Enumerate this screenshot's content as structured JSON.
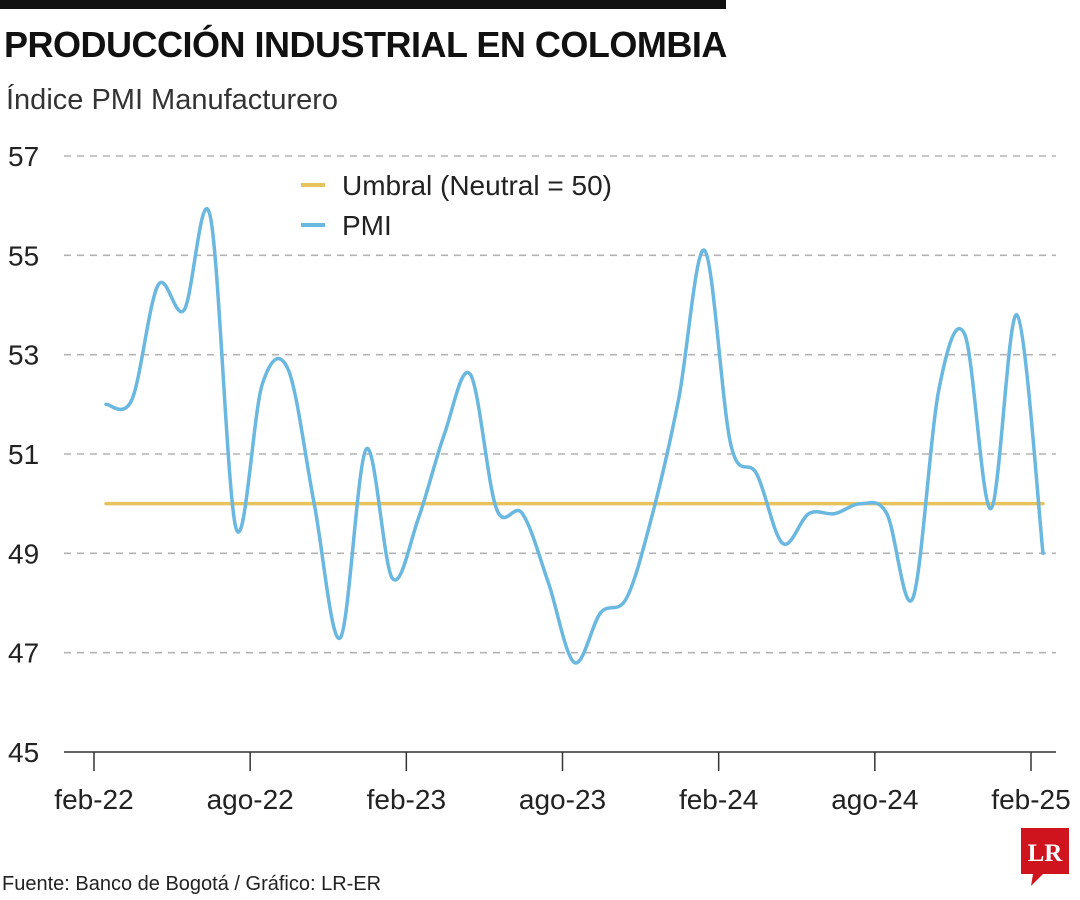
{
  "header": {
    "title": "PRODUCCIÓN INDUSTRIAL EN COLOMBIA",
    "subtitle": "Índice PMI Manufacturero"
  },
  "footer": {
    "source": "Fuente: Banco de Bogotá / Gráfico: LR-ER",
    "logo_text": "LR",
    "logo_icon": "lr-logo-icon"
  },
  "colors": {
    "pmi": "#6ab8e0",
    "threshold": "#e6c35c",
    "grid": "#b3b3b3",
    "logo": "#d0141d"
  },
  "chart_data": {
    "type": "line",
    "x": [
      "feb-22",
      "mar-22",
      "abr-22",
      "may-22",
      "jun-22",
      "jul-22",
      "ago-22",
      "sep-22",
      "oct-22",
      "nov-22",
      "dic-22",
      "ene-23",
      "feb-23",
      "mar-23",
      "abr-23",
      "may-23",
      "jun-23",
      "jul-23",
      "ago-23",
      "sep-23",
      "oct-23",
      "nov-23",
      "dic-23",
      "ene-24",
      "feb-24",
      "mar-24",
      "abr-24",
      "may-24",
      "jun-24",
      "jul-24",
      "ago-24",
      "sep-24",
      "oct-24",
      "nov-24",
      "dic-24",
      "ene-25",
      "feb-25"
    ],
    "x_tick_labels": [
      "feb-22",
      "ago-22",
      "feb-23",
      "ago-23",
      "feb-24",
      "ago-24",
      "feb-25"
    ],
    "y_ticks": [
      45,
      47,
      49,
      51,
      53,
      55,
      57
    ],
    "ylim": [
      45,
      57
    ],
    "grid": "horizontal dashed",
    "legend_position": "top-center",
    "series": [
      {
        "name": "Umbral (Neutral = 50)",
        "color": "#e6c35c",
        "values": [
          50,
          50,
          50,
          50,
          50,
          50,
          50,
          50,
          50,
          50,
          50,
          50,
          50,
          50,
          50,
          50,
          50,
          50,
          50,
          50,
          50,
          50,
          50,
          50,
          50,
          50,
          50,
          50,
          50,
          50,
          50,
          50,
          50,
          50,
          50,
          50,
          50
        ]
      },
      {
        "name": "PMI",
        "color": "#6ab8e0",
        "values": [
          52.0,
          52.1,
          54.4,
          53.9,
          55.8,
          49.5,
          52.4,
          52.7,
          50.0,
          47.3,
          51.1,
          48.5,
          49.7,
          51.4,
          52.6,
          49.9,
          49.8,
          48.4,
          46.8,
          47.8,
          48.1,
          49.8,
          52.1,
          55.1,
          51.2,
          50.6,
          49.2,
          49.8,
          49.8,
          50.0,
          49.8,
          48.1,
          52.3,
          53.4,
          49.9,
          53.8,
          49.0
        ]
      }
    ]
  }
}
